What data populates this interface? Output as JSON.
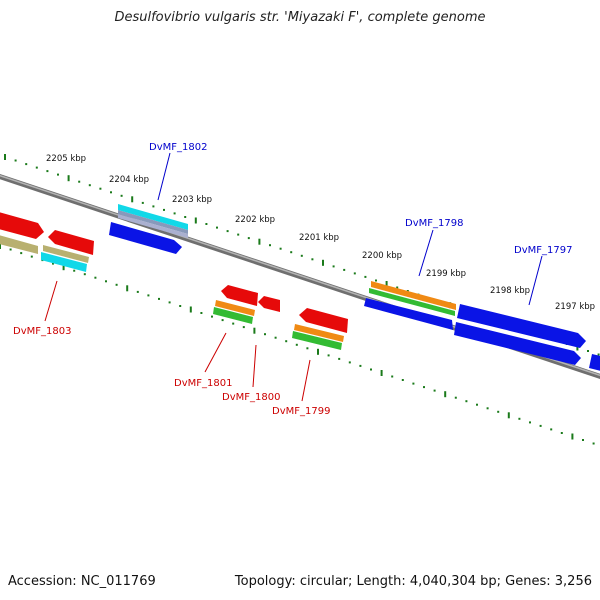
{
  "title": "Desulfovibrio vulgaris str. 'Miyazaki F', complete genome",
  "footer": {
    "accession": "Accession: NC_011769",
    "topology": "Topology: circular; Length: 4,040,304 bp; Genes: 3,256"
  },
  "colors": {
    "forward_label": "#0000cc",
    "reverse_label": "#cc0000",
    "tick": "#1a7a1a",
    "backbone": "#808080",
    "gene_blue": "#0a14e6",
    "gene_red": "#e60a0a",
    "orange": "#f08a14",
    "green": "#33bb33",
    "cyan": "#11d8e8",
    "olive": "#b8b070"
  },
  "kbp_labels": [
    "2205 kbp",
    "2204 kbp",
    "2203 kbp",
    "2202 kbp",
    "2201 kbp",
    "2200 kbp",
    "2199 kbp",
    "2198 kbp",
    "2197 kbp"
  ],
  "forward_genes": [
    "DvMF_1802",
    "DvMF_1798",
    "DvMF_1797"
  ],
  "reverse_genes": [
    "DvMF_1803",
    "DvMF_1801",
    "DvMF_1800",
    "DvMF_1799"
  ]
}
